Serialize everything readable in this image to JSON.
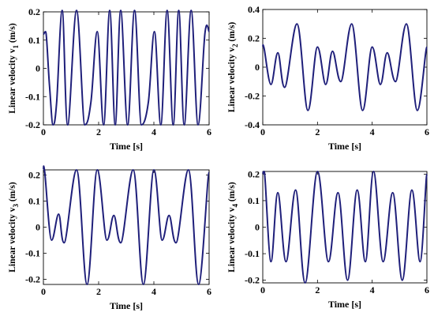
{
  "chart_data": [
    {
      "type": "line",
      "xlabel": "Time [s]",
      "ylabel_main": "Linear velocity  v",
      "ylabel_sub": "1",
      "ylabel_unit": "(m/s)",
      "xlim": [
        0,
        6
      ],
      "ylim": [
        -0.2,
        0.2
      ],
      "xticks": [
        "0",
        "2",
        "4",
        "6"
      ],
      "yticks": [
        "-0.2",
        "-0.1",
        "0",
        "0.1",
        "0.2"
      ],
      "xtick_values": [
        0,
        2,
        4,
        6
      ],
      "ytick_values": [
        -0.2,
        -0.1,
        0,
        0.1,
        0.2
      ],
      "line_color": "#1f1f7a",
      "series": [
        {
          "x": [
            0,
            0.08,
            0.22,
            0.35,
            0.48,
            0.68,
            0.88,
            1.2,
            1.5,
            1.72,
            1.95,
            2.18,
            2.4,
            2.6,
            2.8,
            3.05,
            3.3,
            3.55,
            3.8,
            4.02,
            4.25,
            4.48,
            4.7,
            4.9,
            5.1,
            5.35,
            5.6,
            5.85,
            6.0
          ],
          "y": [
            0.12,
            0.13,
            -0.06,
            -0.2,
            -0.12,
            0.205,
            -0.2,
            0.205,
            -0.2,
            -0.12,
            0.13,
            -0.2,
            0.205,
            -0.2,
            0.205,
            -0.2,
            0.205,
            -0.2,
            -0.12,
            0.13,
            -0.2,
            0.205,
            -0.2,
            0.205,
            -0.2,
            0.205,
            -0.2,
            0.125,
            0.13
          ]
        }
      ]
    },
    {
      "type": "line",
      "xlabel": "Time [s]",
      "ylabel_main": "Linear velocity  v",
      "ylabel_sub": "2",
      "ylabel_unit": "(m/s)",
      "xlim": [
        0,
        6
      ],
      "ylim": [
        -0.4,
        0.4
      ],
      "xticks": [
        "0",
        "2",
        "4",
        "6"
      ],
      "yticks": [
        "-0.4",
        "-0.2",
        "0",
        "0.2",
        "0.4"
      ],
      "xtick_values": [
        0,
        2,
        4,
        6
      ],
      "ytick_values": [
        -0.4,
        -0.2,
        0,
        0.2,
        0.4
      ],
      "line_color": "#1f1f7a",
      "series": [
        {
          "x": [
            0,
            0.05,
            0.3,
            0.55,
            0.8,
            1.25,
            1.65,
            2.0,
            2.3,
            2.55,
            2.85,
            3.25,
            3.65,
            4.0,
            4.3,
            4.55,
            4.85,
            5.25,
            5.65,
            6.0
          ],
          "y": [
            0.14,
            0.13,
            -0.12,
            0.1,
            -0.14,
            0.3,
            -0.3,
            0.14,
            -0.12,
            0.11,
            -0.1,
            0.3,
            -0.3,
            0.14,
            -0.12,
            0.1,
            -0.1,
            0.3,
            -0.3,
            0.14
          ]
        }
      ]
    },
    {
      "type": "line",
      "xlabel": "Time [s]",
      "ylabel_main": "Linear velocity  v",
      "ylabel_sub": "3",
      "ylabel_unit": "(m/s)",
      "xlim": [
        0,
        6
      ],
      "ylim": [
        -0.22,
        0.22
      ],
      "xticks": [
        "0",
        "2",
        "4",
        "6"
      ],
      "yticks": [
        "-0.2",
        "-0.1",
        "0",
        "0.1",
        "0.2"
      ],
      "xtick_values": [
        0,
        2,
        4,
        6
      ],
      "ytick_values": [
        -0.2,
        -0.1,
        0,
        0.1,
        0.2
      ],
      "line_color": "#1f1f7a",
      "series": [
        {
          "x": [
            0,
            0.05,
            0.3,
            0.55,
            0.75,
            1.2,
            1.58,
            1.95,
            2.3,
            2.55,
            2.8,
            3.25,
            3.62,
            4.0,
            4.3,
            4.55,
            4.8,
            5.25,
            5.62,
            6.0
          ],
          "y": [
            0.22,
            0.21,
            -0.05,
            0.05,
            -0.06,
            0.22,
            -0.22,
            0.22,
            -0.05,
            0.045,
            -0.06,
            0.22,
            -0.22,
            0.22,
            -0.05,
            0.045,
            -0.06,
            0.22,
            -0.22,
            0.21
          ]
        }
      ]
    },
    {
      "type": "line",
      "xlabel": "Time [s]",
      "ylabel_main": "Linear velocity  v",
      "ylabel_sub": "4",
      "ylabel_unit": "(m/s)",
      "xlim": [
        0,
        6
      ],
      "ylim": [
        -0.21,
        0.21
      ],
      "xticks": [
        "0",
        "2",
        "4",
        "6"
      ],
      "yticks": [
        "-0.2",
        "-0.1",
        "0",
        "0.1",
        "0.2"
      ],
      "xtick_values": [
        0,
        2,
        4,
        6
      ],
      "ytick_values": [
        -0.2,
        -0.1,
        0,
        0.1,
        0.2
      ],
      "line_color": "#1f1f7a",
      "series": [
        {
          "x": [
            0,
            0.05,
            0.3,
            0.55,
            0.85,
            1.2,
            1.55,
            2.0,
            2.4,
            2.75,
            3.1,
            3.45,
            3.75,
            4.05,
            4.4,
            4.75,
            5.1,
            5.45,
            5.75,
            6.0
          ],
          "y": [
            0.2,
            0.21,
            -0.13,
            0.13,
            -0.13,
            0.14,
            -0.21,
            0.21,
            -0.13,
            0.13,
            -0.2,
            0.14,
            -0.13,
            0.21,
            -0.13,
            0.13,
            -0.2,
            0.14,
            -0.13,
            0.2
          ]
        }
      ]
    }
  ]
}
